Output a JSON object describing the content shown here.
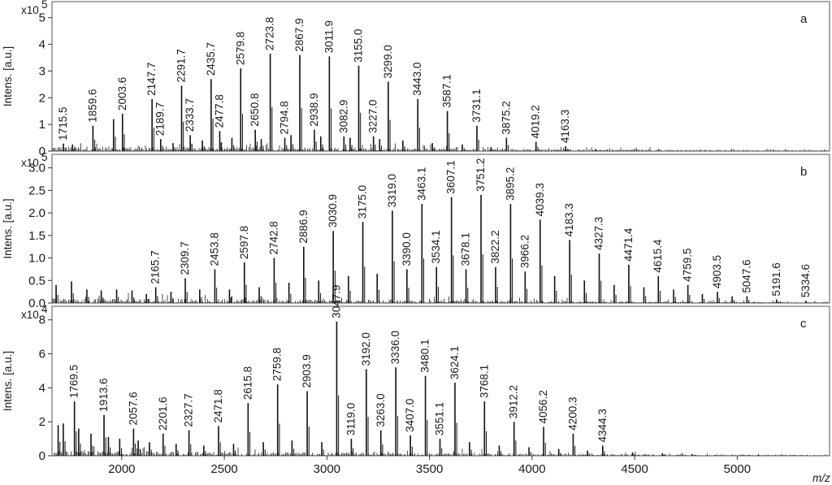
{
  "chart_data": {
    "type": "line",
    "subtype": "mass-spectrum-stacked",
    "xlabel": "m/z",
    "xlim": [
      1660,
      5450
    ],
    "xticks": [
      2000,
      2500,
      3000,
      3500,
      4000,
      4500,
      5000
    ],
    "xtick_labels": [
      "2000",
      "2500",
      "3000",
      "3500",
      "4000",
      "4500",
      "5000"
    ],
    "panels": [
      {
        "letter": "a",
        "ylabel": "Intens. [a.u.]",
        "multiplier_base": "x10",
        "multiplier_exp": "5",
        "ylim": [
          0,
          5.6
        ],
        "yticks": [
          0,
          1,
          2,
          3,
          4,
          5
        ],
        "ytick_labels": [
          "0",
          "1",
          "2",
          "3",
          "4",
          "5"
        ],
        "labels": [
          "1715.5",
          "1859.6",
          "2003.6",
          "2147.7",
          "2189.7",
          "2291.7",
          "2333.7",
          "2435.7",
          "2477.8",
          "2579.8",
          "2650.8",
          "2723.8",
          "2794.8",
          "2867.9",
          "2938.9",
          "3011.9",
          "3082.9",
          "3155.0",
          "3227.0",
          "3299.0",
          "3443.0",
          "3587.1",
          "3731.1",
          "3875.2",
          "4019.2",
          "4163.3"
        ],
        "peaks": [
          {
            "x": 1715.5,
            "y": 0.28,
            "label": 0
          },
          {
            "x": 1760,
            "y": 0.25
          },
          {
            "x": 1859.6,
            "y": 0.95,
            "label": 1
          },
          {
            "x": 1960,
            "y": 1.2
          },
          {
            "x": 2003.6,
            "y": 1.4,
            "label": 2
          },
          {
            "x": 2147.7,
            "y": 1.95,
            "label": 3
          },
          {
            "x": 2189.7,
            "y": 0.45,
            "label": 4
          },
          {
            "x": 2250,
            "y": 0.3
          },
          {
            "x": 2291.7,
            "y": 2.45,
            "label": 5
          },
          {
            "x": 2333.7,
            "y": 0.6,
            "label": 6
          },
          {
            "x": 2393,
            "y": 0.4
          },
          {
            "x": 2435.7,
            "y": 2.7,
            "label": 7
          },
          {
            "x": 2477.8,
            "y": 0.75,
            "label": 8
          },
          {
            "x": 2537,
            "y": 0.5
          },
          {
            "x": 2579.8,
            "y": 3.1,
            "label": 9
          },
          {
            "x": 2650.8,
            "y": 0.8,
            "label": 10
          },
          {
            "x": 2680,
            "y": 0.45
          },
          {
            "x": 2723.8,
            "y": 3.65,
            "label": 11
          },
          {
            "x": 2794.8,
            "y": 0.5,
            "label": 12
          },
          {
            "x": 2825,
            "y": 0.6
          },
          {
            "x": 2867.9,
            "y": 3.6,
            "label": 13
          },
          {
            "x": 2938.9,
            "y": 0.8,
            "label": 14
          },
          {
            "x": 2970,
            "y": 0.55
          },
          {
            "x": 3011.9,
            "y": 3.55,
            "label": 15
          },
          {
            "x": 3082.9,
            "y": 0.55,
            "label": 16
          },
          {
            "x": 3113,
            "y": 0.5
          },
          {
            "x": 3155.0,
            "y": 3.2,
            "label": 17
          },
          {
            "x": 3227.0,
            "y": 0.55,
            "label": 18
          },
          {
            "x": 3257,
            "y": 0.45
          },
          {
            "x": 3299.0,
            "y": 2.6,
            "label": 19
          },
          {
            "x": 3370,
            "y": 0.4
          },
          {
            "x": 3443.0,
            "y": 1.95,
            "label": 20
          },
          {
            "x": 3514,
            "y": 0.3
          },
          {
            "x": 3587.1,
            "y": 1.5,
            "label": 21
          },
          {
            "x": 3660,
            "y": 0.25
          },
          {
            "x": 3731.1,
            "y": 0.95,
            "label": 22
          },
          {
            "x": 3800,
            "y": 0.15
          },
          {
            "x": 3875.2,
            "y": 0.5,
            "label": 23
          },
          {
            "x": 4019.2,
            "y": 0.35,
            "label": 24
          },
          {
            "x": 4163.3,
            "y": 0.18,
            "label": 25
          },
          {
            "x": 4310,
            "y": 0.08
          }
        ]
      },
      {
        "letter": "b",
        "ylabel": "Intens. [a.u.]",
        "multiplier_base": "x10",
        "multiplier_exp": "5",
        "ylim": [
          0,
          3.3
        ],
        "yticks": [
          0,
          0.5,
          1.0,
          1.5,
          2.0,
          2.5,
          3.0
        ],
        "ytick_labels": [
          "0.0",
          "0.5",
          "1.0",
          "1.5",
          "2.0",
          "2.5",
          "3.0"
        ],
        "labels": [
          "2165.7",
          "2309.7",
          "2453.8",
          "2597.8",
          "2742.8",
          "2886.9",
          "3030.9",
          "3175.0",
          "3319.0",
          "3390.0",
          "3463.1",
          "3534.1",
          "3607.1",
          "3678.1",
          "3751.2",
          "3822.2",
          "3895.2",
          "3966.2",
          "4039.3",
          "4183.3",
          "4327.3",
          "4471.4",
          "4615.4",
          "4759.5",
          "4903.5",
          "5047.6",
          "5191.6",
          "5334.6"
        ],
        "peaks": [
          {
            "x": 1680,
            "y": 0.4
          },
          {
            "x": 1755,
            "y": 0.48
          },
          {
            "x": 1830,
            "y": 0.3
          },
          {
            "x": 1900,
            "y": 0.28
          },
          {
            "x": 1975,
            "y": 0.3
          },
          {
            "x": 2050,
            "y": 0.28
          },
          {
            "x": 2120,
            "y": 0.2
          },
          {
            "x": 2165.7,
            "y": 0.35,
            "label": 0
          },
          {
            "x": 2240,
            "y": 0.25
          },
          {
            "x": 2309.7,
            "y": 0.55,
            "label": 1
          },
          {
            "x": 2380,
            "y": 0.3
          },
          {
            "x": 2453.8,
            "y": 0.75,
            "label": 2
          },
          {
            "x": 2525,
            "y": 0.3
          },
          {
            "x": 2597.8,
            "y": 0.9,
            "label": 3
          },
          {
            "x": 2670,
            "y": 0.35
          },
          {
            "x": 2742.8,
            "y": 1.0,
            "label": 4
          },
          {
            "x": 2815,
            "y": 0.45
          },
          {
            "x": 2886.9,
            "y": 1.25,
            "label": 5
          },
          {
            "x": 2960,
            "y": 0.5
          },
          {
            "x": 3030.9,
            "y": 1.6,
            "label": 6
          },
          {
            "x": 3105,
            "y": 0.6
          },
          {
            "x": 3175.0,
            "y": 1.8,
            "label": 7
          },
          {
            "x": 3245,
            "y": 0.65
          },
          {
            "x": 3319.0,
            "y": 2.05,
            "label": 8
          },
          {
            "x": 3390.0,
            "y": 0.75,
            "label": 9
          },
          {
            "x": 3463.1,
            "y": 2.2,
            "label": 10
          },
          {
            "x": 3534.1,
            "y": 0.8,
            "label": 11
          },
          {
            "x": 3607.1,
            "y": 2.35,
            "label": 12
          },
          {
            "x": 3678.1,
            "y": 0.75,
            "label": 13
          },
          {
            "x": 3751.2,
            "y": 2.4,
            "label": 14
          },
          {
            "x": 3822.2,
            "y": 0.8,
            "label": 15
          },
          {
            "x": 3895.2,
            "y": 2.2,
            "label": 16
          },
          {
            "x": 3966.2,
            "y": 0.7,
            "label": 17
          },
          {
            "x": 4039.3,
            "y": 1.85,
            "label": 18
          },
          {
            "x": 4110,
            "y": 0.6
          },
          {
            "x": 4183.3,
            "y": 1.4,
            "label": 19
          },
          {
            "x": 4255,
            "y": 0.5
          },
          {
            "x": 4327.3,
            "y": 1.1,
            "label": 20
          },
          {
            "x": 4400,
            "y": 0.4
          },
          {
            "x": 4471.4,
            "y": 0.85,
            "label": 21
          },
          {
            "x": 4545,
            "y": 0.35
          },
          {
            "x": 4615.4,
            "y": 0.6,
            "label": 22
          },
          {
            "x": 4690,
            "y": 0.3
          },
          {
            "x": 4759.5,
            "y": 0.4,
            "label": 23
          },
          {
            "x": 4830,
            "y": 0.2
          },
          {
            "x": 4903.5,
            "y": 0.25,
            "label": 24
          },
          {
            "x": 4975,
            "y": 0.15
          },
          {
            "x": 5047.6,
            "y": 0.15,
            "label": 25
          },
          {
            "x": 5191.6,
            "y": 0.08,
            "label": 26
          },
          {
            "x": 5334.6,
            "y": 0.05,
            "label": 27
          }
        ]
      },
      {
        "letter": "c",
        "ylabel": "Intens. [a.u.]",
        "multiplier_base": "x10",
        "multiplier_exp": "4",
        "ylim": [
          0,
          8.8
        ],
        "yticks": [
          0,
          2,
          4,
          6,
          8
        ],
        "ytick_labels": [
          "0",
          "2",
          "4",
          "6",
          "8"
        ],
        "labels": [
          "1769.5",
          "1913.6",
          "2057.6",
          "2201.6",
          "2327.7",
          "2471.8",
          "2615.8",
          "2759.8",
          "2903.9",
          "3047.9",
          "3119.0",
          "3192.0",
          "3263.0",
          "3336.0",
          "3407.0",
          "3480.1",
          "3551.1",
          "3624.1",
          "3768.1",
          "3912.2",
          "4056.2",
          "4200.3",
          "4344.3"
        ],
        "peaks": [
          {
            "x": 1690,
            "y": 1.8
          },
          {
            "x": 1715,
            "y": 1.9
          },
          {
            "x": 1769.5,
            "y": 3.2,
            "label": 0
          },
          {
            "x": 1790,
            "y": 1.6
          },
          {
            "x": 1850,
            "y": 1.3
          },
          {
            "x": 1913.6,
            "y": 2.4,
            "label": 1
          },
          {
            "x": 1935,
            "y": 1.1
          },
          {
            "x": 1990,
            "y": 1.0
          },
          {
            "x": 2057.6,
            "y": 1.6,
            "label": 2
          },
          {
            "x": 2080,
            "y": 0.9
          },
          {
            "x": 2135,
            "y": 0.8
          },
          {
            "x": 2201.6,
            "y": 1.3,
            "label": 3
          },
          {
            "x": 2265,
            "y": 0.7
          },
          {
            "x": 2327.7,
            "y": 1.5,
            "label": 4
          },
          {
            "x": 2400,
            "y": 0.6
          },
          {
            "x": 2471.8,
            "y": 1.75,
            "label": 5
          },
          {
            "x": 2545,
            "y": 0.7
          },
          {
            "x": 2615.8,
            "y": 3.1,
            "label": 6
          },
          {
            "x": 2690,
            "y": 0.8
          },
          {
            "x": 2759.8,
            "y": 4.2,
            "label": 7
          },
          {
            "x": 2830,
            "y": 0.9
          },
          {
            "x": 2903.9,
            "y": 3.8,
            "label": 8
          },
          {
            "x": 2975,
            "y": 0.8
          },
          {
            "x": 3047.9,
            "y": 7.9,
            "label": 9
          },
          {
            "x": 3119.0,
            "y": 1.0,
            "label": 10
          },
          {
            "x": 3192.0,
            "y": 5.1,
            "label": 11
          },
          {
            "x": 3263.0,
            "y": 1.5,
            "label": 12
          },
          {
            "x": 3336.0,
            "y": 5.2,
            "label": 13
          },
          {
            "x": 3407.0,
            "y": 1.2,
            "label": 14
          },
          {
            "x": 3480.1,
            "y": 4.7,
            "label": 15
          },
          {
            "x": 3551.1,
            "y": 1.0,
            "label": 16
          },
          {
            "x": 3624.1,
            "y": 4.3,
            "label": 17
          },
          {
            "x": 3695,
            "y": 0.8
          },
          {
            "x": 3768.1,
            "y": 3.2,
            "label": 18
          },
          {
            "x": 3840,
            "y": 0.6
          },
          {
            "x": 3912.2,
            "y": 2.0,
            "label": 19
          },
          {
            "x": 3985,
            "y": 0.5
          },
          {
            "x": 4056.2,
            "y": 1.7,
            "label": 20
          },
          {
            "x": 4130,
            "y": 0.4
          },
          {
            "x": 4200.3,
            "y": 1.3,
            "label": 21
          },
          {
            "x": 4270,
            "y": 0.3
          },
          {
            "x": 4344.3,
            "y": 0.6,
            "label": 22
          },
          {
            "x": 4490,
            "y": 0.2
          },
          {
            "x": 4635,
            "y": 0.15
          },
          {
            "x": 4780,
            "y": 0.1
          }
        ]
      }
    ]
  }
}
